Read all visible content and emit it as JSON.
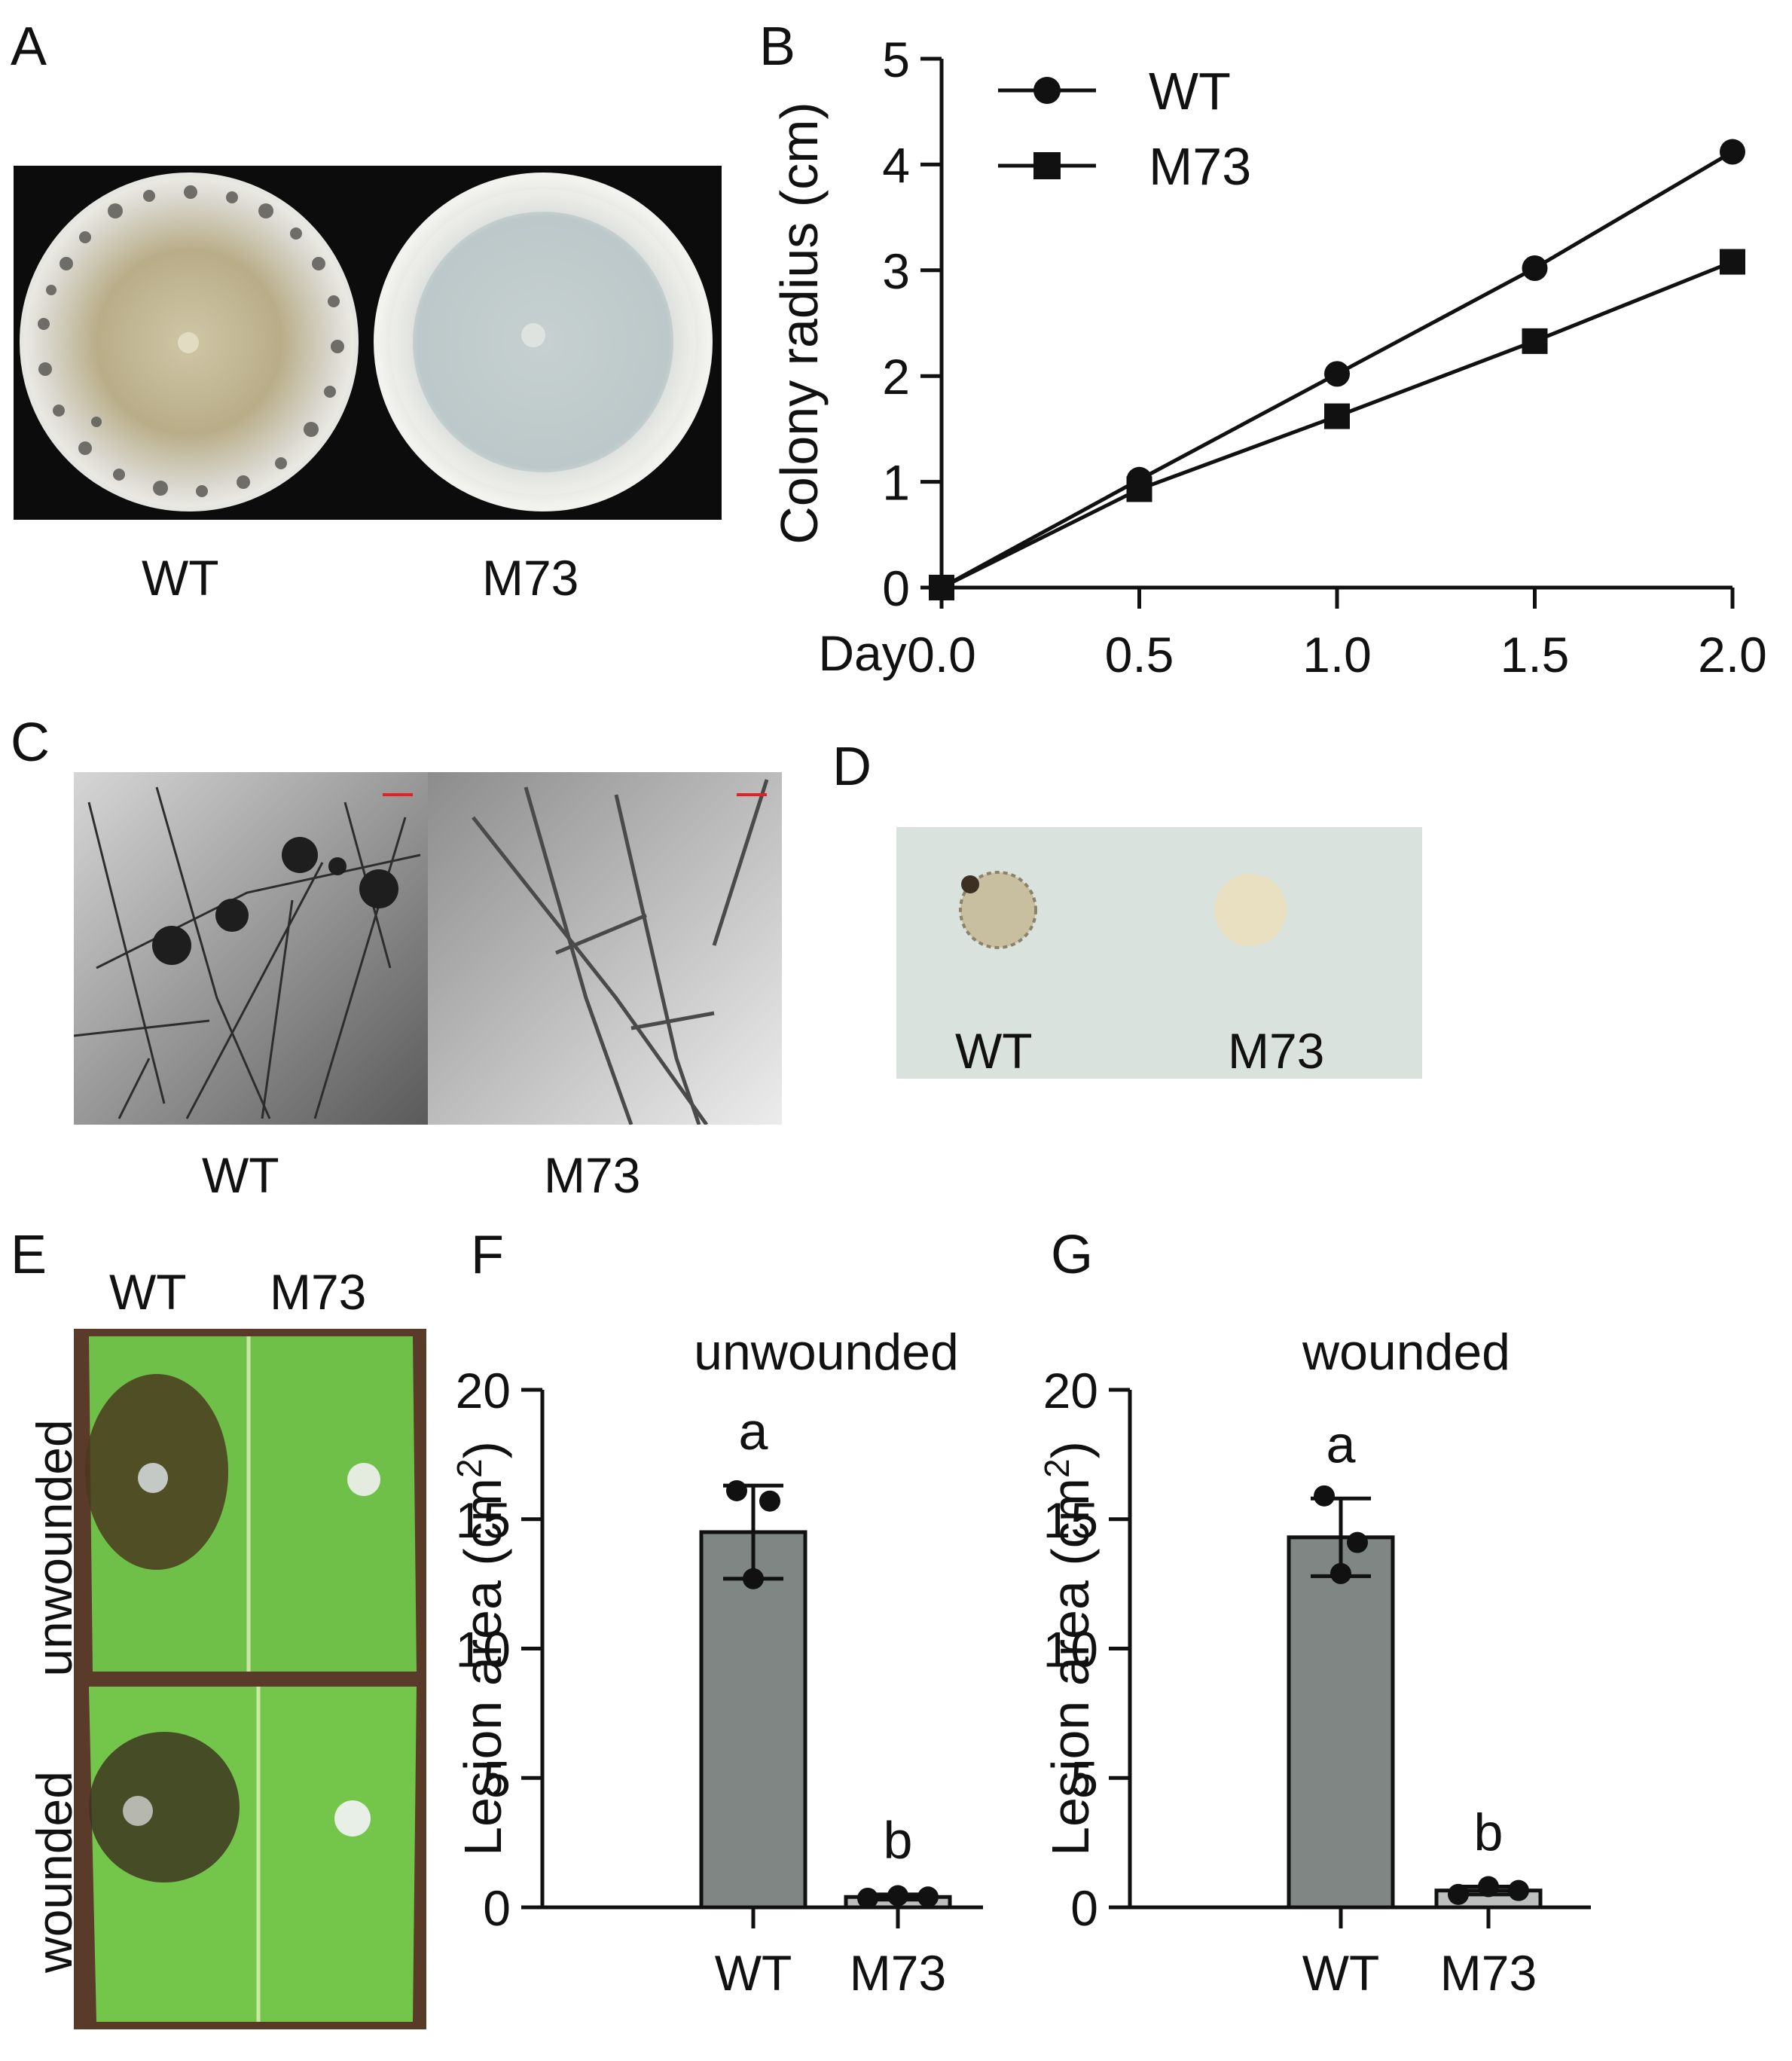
{
  "panels": {
    "A": {
      "letter": "A",
      "labels": [
        "WT",
        "M73"
      ]
    },
    "B": {
      "letter": "B"
    },
    "C": {
      "letter": "C",
      "labels": [
        "WT",
        "M73"
      ]
    },
    "D": {
      "letter": "D",
      "labels": [
        "WT",
        "M73"
      ]
    },
    "E": {
      "letter": "E",
      "col_labels": [
        "WT",
        "M73"
      ],
      "row_labels": [
        "unwounded",
        "wounded"
      ]
    },
    "F": {
      "letter": "F"
    },
    "G": {
      "letter": "G"
    }
  },
  "chart_data": [
    {
      "id": "B",
      "type": "line",
      "title": "",
      "xlabel": "Day",
      "ylabel": "Colony radius (cm)",
      "x": [
        0.0,
        0.5,
        1.0,
        1.5,
        2.0
      ],
      "x_tick_labels": [
        "0.0",
        "0.5",
        "1.0",
        "1.5",
        "2.0"
      ],
      "y_ticks": [
        0,
        1,
        2,
        3,
        4,
        5
      ],
      "xlim": [
        0,
        2
      ],
      "ylim": [
        0,
        5
      ],
      "legend_position": "top-left",
      "series": [
        {
          "name": "WT",
          "marker": "circle",
          "values": [
            0,
            1.02,
            2.02,
            3.02,
            4.12
          ]
        },
        {
          "name": "M73",
          "marker": "square",
          "values": [
            0,
            0.93,
            1.62,
            2.33,
            3.08
          ]
        }
      ],
      "grid": false
    },
    {
      "id": "F",
      "type": "bar",
      "title": "unwounded",
      "xlabel": "",
      "ylabel": "Lesion area (cm",
      "ylabel_sup": "2",
      "ylabel_end": ")",
      "categories": [
        "WT",
        "M73"
      ],
      "values": [
        14.5,
        0.4
      ],
      "error": [
        1.8,
        0.1
      ],
      "points": [
        [
          16.1,
          15.7,
          12.7
        ],
        [
          0.35,
          0.45,
          0.4
        ]
      ],
      "letters": [
        "a",
        "b"
      ],
      "y_ticks": [
        0,
        5,
        10,
        15,
        20
      ],
      "ylim": [
        0,
        20
      ],
      "bar_colors": [
        "#7f8683",
        "#bdbfbe"
      ]
    },
    {
      "id": "G",
      "type": "bar",
      "title": "wounded",
      "xlabel": "",
      "ylabel": "Lesion area (cm",
      "ylabel_sup": "2",
      "ylabel_end": ")",
      "categories": [
        "WT",
        "M73"
      ],
      "values": [
        14.3,
        0.65
      ],
      "error": [
        1.5,
        0.15
      ],
      "points": [
        [
          15.9,
          14.1,
          12.9
        ],
        [
          0.5,
          0.8,
          0.65
        ]
      ],
      "letters": [
        "a",
        "b"
      ],
      "y_ticks": [
        0,
        5,
        10,
        15,
        20
      ],
      "ylim": [
        0,
        20
      ],
      "bar_colors": [
        "#7f8683",
        "#bdbfbe"
      ]
    }
  ]
}
